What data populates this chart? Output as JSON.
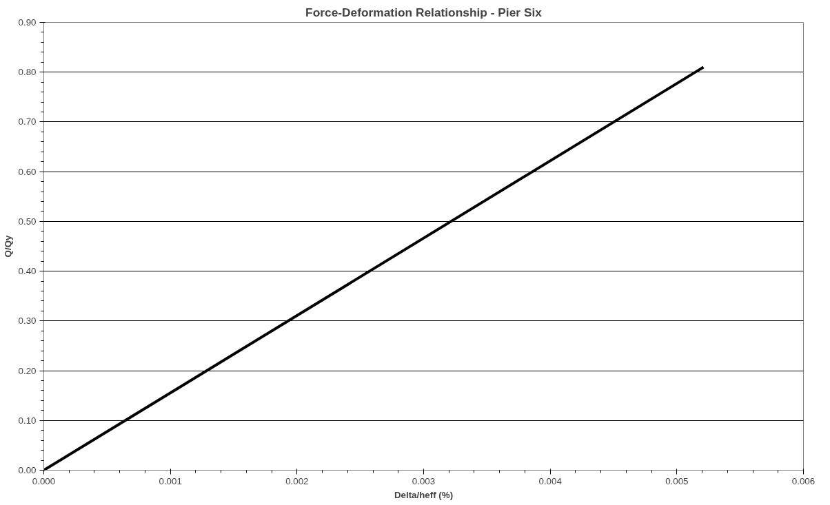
{
  "chart_data": {
    "type": "line",
    "title": "Force-Deformation Relationship - Pier Six",
    "xlabel": "Delta/heff (%)",
    "ylabel": "Q/Qy",
    "x": [
      0,
      0.00521
    ],
    "series": [
      {
        "color": "#000000",
        "values": [
          0,
          0.81
        ]
      }
    ],
    "xlim": [
      0,
      0.006
    ],
    "xticks": [
      {
        "value": 0,
        "label": "0.000"
      },
      {
        "value": 0.001,
        "label": "0.001"
      },
      {
        "value": 0.002,
        "label": "0.002"
      },
      {
        "value": 0.003,
        "label": "0.003"
      },
      {
        "value": 0.004,
        "label": "0.004"
      },
      {
        "value": 0.005,
        "label": "0.005"
      },
      {
        "value": 0.006,
        "label": "0.006"
      }
    ],
    "ylim": [
      0,
      0.9
    ],
    "yticks": [
      {
        "value": 0,
        "label": "0.00"
      },
      {
        "value": 0.1,
        "label": "0.10"
      },
      {
        "value": 0.2,
        "label": "0.20"
      },
      {
        "value": 0.3,
        "label": "0.30"
      },
      {
        "value": 0.4,
        "label": "0.40"
      },
      {
        "value": 0.5,
        "label": "0.50"
      },
      {
        "value": 0.6,
        "label": "0.60"
      },
      {
        "value": 0.7,
        "label": "0.70"
      },
      {
        "value": 0.8,
        "label": "0.80"
      },
      {
        "value": 0.9,
        "label": "0.90"
      }
    ],
    "grid": "y",
    "marker": "none",
    "line_style": "solid"
  }
}
